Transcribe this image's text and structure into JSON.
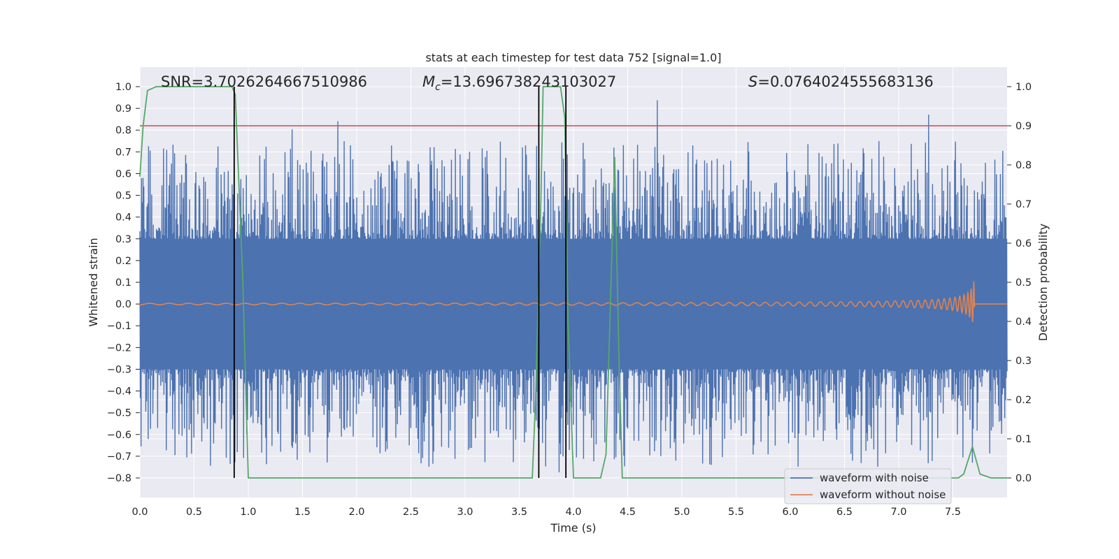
{
  "chart_data": {
    "type": "line",
    "title": "stats at each timestep for test data 752 [signal=1.0]",
    "xlabel": "Time (s)",
    "ylabel": "Whitened strain",
    "y2label": "Detection probability",
    "xlim": [
      0.0,
      8.0
    ],
    "ylim": [
      -0.89,
      1.09
    ],
    "y2lim": [
      -0.05,
      1.05
    ],
    "xticks": [
      "0.0",
      "0.5",
      "1.0",
      "1.5",
      "2.0",
      "2.5",
      "3.0",
      "3.5",
      "4.0",
      "4.5",
      "5.0",
      "5.5",
      "6.0",
      "6.5",
      "7.0",
      "7.5"
    ],
    "yticks": [
      "1.0",
      "0.9",
      "0.8",
      "0.7",
      "0.6",
      "0.5",
      "0.4",
      "0.3",
      "0.2",
      "0.1",
      "0.0",
      "−0.1",
      "−0.2",
      "−0.3",
      "−0.4",
      "−0.5",
      "−0.6",
      "−0.7",
      "−0.8"
    ],
    "y2ticks": [
      "1.0",
      "0.9",
      "0.8",
      "0.7",
      "0.6",
      "0.5",
      "0.4",
      "0.3",
      "0.2",
      "0.1",
      "0.0"
    ],
    "grid": true,
    "legend_position": "bottom-right",
    "annotations": {
      "snr": "SNR=3.7026264667510986",
      "mc_symbol": "M",
      "mc_sub": "c",
      "mc_value": "=13.696738243103027",
      "s_symbol": "S",
      "s_value": "=0.0764024555683136"
    },
    "series": [
      {
        "name": "waveform with noise",
        "color": "#4c72b0",
        "kind": "noise",
        "band_abs": 0.27,
        "max_peak": 1.0,
        "min_peak": -0.8
      },
      {
        "name": "waveform without noise",
        "color": "#dd8452",
        "kind": "chirp",
        "merger_time": 7.7,
        "peak_amplitude": 0.17
      },
      {
        "color": "#55a868",
        "axis": "right",
        "x": [
          0.0,
          0.03,
          0.07,
          0.15,
          0.85,
          0.88,
          0.95,
          1.0,
          3.62,
          3.65,
          3.7,
          3.72,
          3.88,
          3.92,
          3.95,
          4.0,
          4.25,
          4.3,
          4.38,
          4.42,
          4.45,
          7.55,
          7.6,
          7.68,
          7.75,
          7.85,
          8.0
        ],
        "y": [
          0.77,
          0.9,
          0.99,
          1.0,
          1.0,
          0.98,
          0.5,
          0.0,
          0.0,
          0.2,
          0.72,
          1.0,
          1.0,
          0.92,
          0.4,
          0.0,
          0.0,
          0.06,
          0.82,
          0.3,
          0.0,
          0.0,
          0.01,
          0.08,
          0.01,
          0.0,
          0.0
        ]
      },
      {
        "color": "#c44e52",
        "axis": "right",
        "kind": "threshold",
        "value": 0.9
      }
    ],
    "vlines": [
      0.87,
      3.68,
      3.93
    ]
  }
}
